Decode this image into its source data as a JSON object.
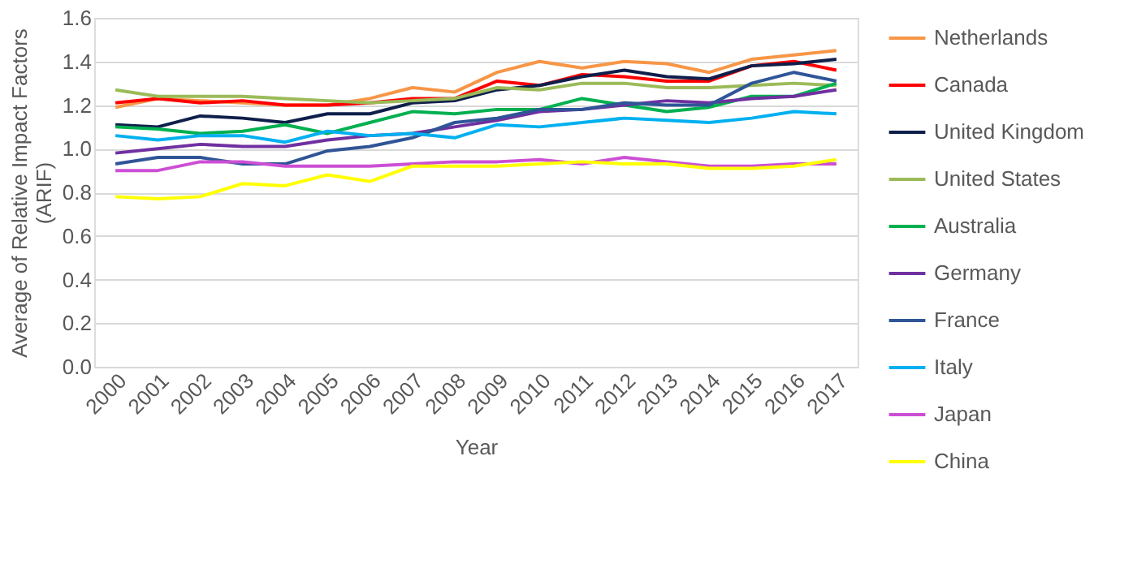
{
  "chart_data": {
    "type": "line",
    "xlabel": "Year",
    "ylabel": "Average of Relative Impact Factors (ARIF)",
    "categories": [
      "2000",
      "2001",
      "2002",
      "2003",
      "2004",
      "2005",
      "2006",
      "2007",
      "2008",
      "2009",
      "2010",
      "2011",
      "2012",
      "2013",
      "2014",
      "2015",
      "2016",
      "2017"
    ],
    "ylim": [
      0,
      1.6
    ],
    "yticks": [
      {
        "value": 0,
        "label": "0.0"
      },
      {
        "value": 0.2,
        "label": "0.2"
      },
      {
        "value": 0.4,
        "label": "0.4"
      },
      {
        "value": 0.6,
        "label": "0.6"
      },
      {
        "value": 0.8,
        "label": "0.8"
      },
      {
        "value": 1,
        "label": "1.0"
      },
      {
        "value": 1.2,
        "label": "1.2"
      },
      {
        "value": 1.4,
        "label": "1.4"
      },
      {
        "value": 1.6,
        "label": "1.6"
      }
    ],
    "grid": "y",
    "legend": "right",
    "marker": "none",
    "line_style": "solid",
    "series": [
      {
        "name": "Netherlands",
        "color": "#f79646",
        "values": [
          1.19,
          1.23,
          1.22,
          1.21,
          1.2,
          1.2,
          1.23,
          1.28,
          1.26,
          1.35,
          1.4,
          1.37,
          1.4,
          1.39,
          1.35,
          1.41,
          1.43,
          1.45
        ]
      },
      {
        "name": "Canada",
        "color": "#ff0000",
        "values": [
          1.21,
          1.23,
          1.21,
          1.22,
          1.2,
          1.2,
          1.21,
          1.23,
          1.23,
          1.31,
          1.29,
          1.34,
          1.33,
          1.31,
          1.31,
          1.38,
          1.4,
          1.36
        ]
      },
      {
        "name": "United Kingdom",
        "color": "#0f1f4b",
        "values": [
          1.11,
          1.1,
          1.15,
          1.14,
          1.12,
          1.16,
          1.16,
          1.21,
          1.22,
          1.27,
          1.29,
          1.33,
          1.36,
          1.33,
          1.32,
          1.38,
          1.39,
          1.41
        ]
      },
      {
        "name": "United States",
        "color": "#9bbb59",
        "values": [
          1.27,
          1.24,
          1.24,
          1.24,
          1.23,
          1.22,
          1.21,
          1.22,
          1.23,
          1.28,
          1.27,
          1.3,
          1.3,
          1.28,
          1.28,
          1.29,
          1.3,
          1.29
        ]
      },
      {
        "name": "Australia",
        "color": "#00b050",
        "values": [
          1.1,
          1.09,
          1.07,
          1.08,
          1.11,
          1.07,
          1.12,
          1.17,
          1.16,
          1.18,
          1.18,
          1.23,
          1.2,
          1.17,
          1.19,
          1.24,
          1.24,
          1.3
        ]
      },
      {
        "name": "Germany",
        "color": "#7030a0",
        "values": [
          0.98,
          1.0,
          1.02,
          1.01,
          1.01,
          1.04,
          1.06,
          1.07,
          1.1,
          1.13,
          1.17,
          1.18,
          1.2,
          1.22,
          1.21,
          1.23,
          1.24,
          1.27
        ]
      },
      {
        "name": "France",
        "color": "#2f5597",
        "values": [
          0.93,
          0.96,
          0.96,
          0.93,
          0.93,
          0.99,
          1.01,
          1.05,
          1.12,
          1.14,
          1.18,
          1.18,
          1.21,
          1.2,
          1.2,
          1.3,
          1.35,
          1.31
        ]
      },
      {
        "name": "Italy",
        "color": "#00b0f0",
        "values": [
          1.06,
          1.04,
          1.06,
          1.06,
          1.03,
          1.08,
          1.06,
          1.07,
          1.05,
          1.11,
          1.1,
          1.12,
          1.14,
          1.13,
          1.12,
          1.14,
          1.17,
          1.16
        ]
      },
      {
        "name": "Japan",
        "color": "#cc4fd4",
        "values": [
          0.9,
          0.9,
          0.94,
          0.94,
          0.92,
          0.92,
          0.92,
          0.93,
          0.94,
          0.94,
          0.95,
          0.93,
          0.96,
          0.94,
          0.92,
          0.92,
          0.93,
          0.93
        ]
      },
      {
        "name": "China",
        "color": "#ffff00",
        "values": [
          0.78,
          0.77,
          0.78,
          0.84,
          0.83,
          0.88,
          0.85,
          0.92,
          0.92,
          0.92,
          0.93,
          0.94,
          0.93,
          0.93,
          0.91,
          0.91,
          0.92,
          0.95
        ]
      }
    ]
  }
}
